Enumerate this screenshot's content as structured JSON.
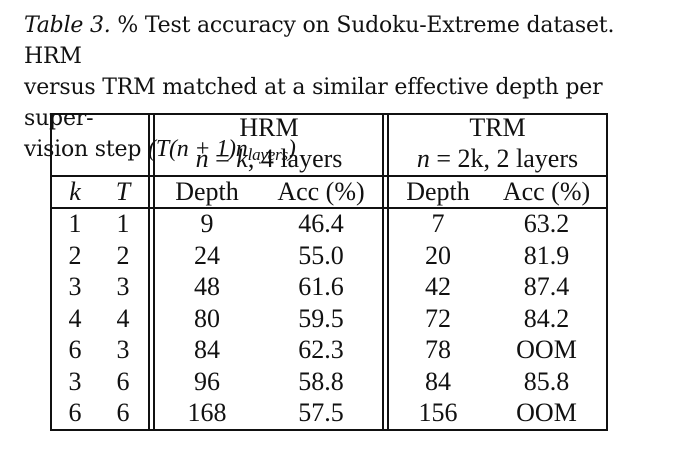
{
  "caption": {
    "label": "Table 3.",
    "line1_rest": " % Test accuracy on Sudoku-Extreme dataset. HRM",
    "line2": "versus TRM matched at a similar effective depth per super-",
    "line3": "vision step ",
    "formula_main": "(T(n + 1)n",
    "formula_sub": "layers",
    "formula_close": ")"
  },
  "table": {
    "groups": [
      {
        "name": "HRM",
        "setting_var": "n",
        "setting_eq": " = ",
        "setting_val": "k",
        "setting_rest": ", 4 layers"
      },
      {
        "name": "TRM",
        "setting_var": "n",
        "setting_eq": " = ",
        "setting_val": "2k",
        "setting_rest": ", 2 layers"
      }
    ],
    "col_k": "k",
    "col_T": "T",
    "col_depth": "Depth",
    "col_acc": "Acc (%)",
    "rows": [
      {
        "k": "1",
        "T": "1",
        "hrm_depth": "9",
        "hrm_acc": "46.4",
        "trm_depth": "7",
        "trm_acc": "63.2"
      },
      {
        "k": "2",
        "T": "2",
        "hrm_depth": "24",
        "hrm_acc": "55.0",
        "trm_depth": "20",
        "trm_acc": "81.9"
      },
      {
        "k": "3",
        "T": "3",
        "hrm_depth": "48",
        "hrm_acc": "61.6",
        "trm_depth": "42",
        "trm_acc": "87.4"
      },
      {
        "k": "4",
        "T": "4",
        "hrm_depth": "80",
        "hrm_acc": "59.5",
        "trm_depth": "72",
        "trm_acc": "84.2"
      },
      {
        "k": "6",
        "T": "3",
        "hrm_depth": "84",
        "hrm_acc": "62.3",
        "trm_depth": "78",
        "trm_acc": "OOM"
      },
      {
        "k": "3",
        "T": "6",
        "hrm_depth": "96",
        "hrm_acc": "58.8",
        "trm_depth": "84",
        "trm_acc": "85.8"
      },
      {
        "k": "6",
        "T": "6",
        "hrm_depth": "168",
        "hrm_acc": "57.5",
        "trm_depth": "156",
        "trm_acc": "OOM"
      }
    ]
  }
}
